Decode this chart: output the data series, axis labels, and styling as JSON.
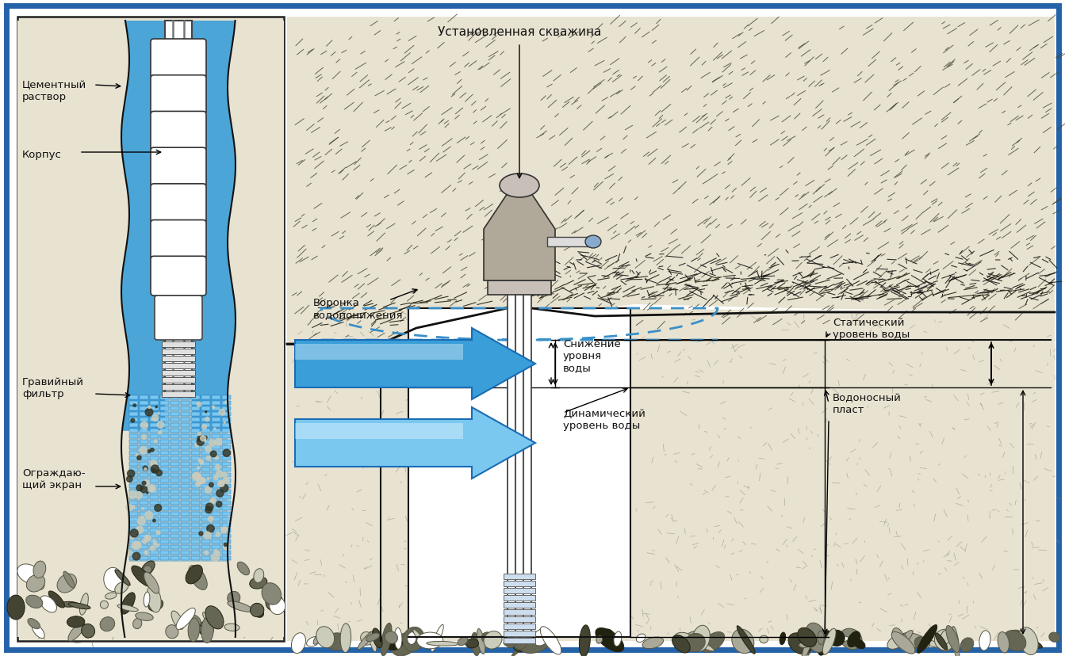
{
  "bg_color": "#ffffff",
  "border_color": "#2563a8",
  "border_lw": 5,
  "fig_width": 13.43,
  "fig_height": 8.29,
  "title_text": "Установленная скважина",
  "title_fontsize": 11,
  "text_fontsize": 9.5,
  "small_fontsize": 8.5,
  "labels_left": {
    "cement": "Цементный\nраствор",
    "korpus": "Корпус",
    "gravel": "Гравийный\nфильтр",
    "screen": "Ограждаю-\nщий экран"
  },
  "labels_right": {
    "funnel": "Воронка\nводопонижения",
    "snizh": "Снижение\nуровня\nводы",
    "dynamic": "Динамический\nуровень воды",
    "static": "Статический\nуровень воды",
    "aquifer": "Водоносный\nпласт"
  },
  "blue_color_dark": "#1a6db5",
  "blue_color_mid": "#3a9fd8",
  "blue_color_light": "#7ac8f0",
  "soil_color": "#d8d0b8",
  "rock_color": "#b8b0a0"
}
